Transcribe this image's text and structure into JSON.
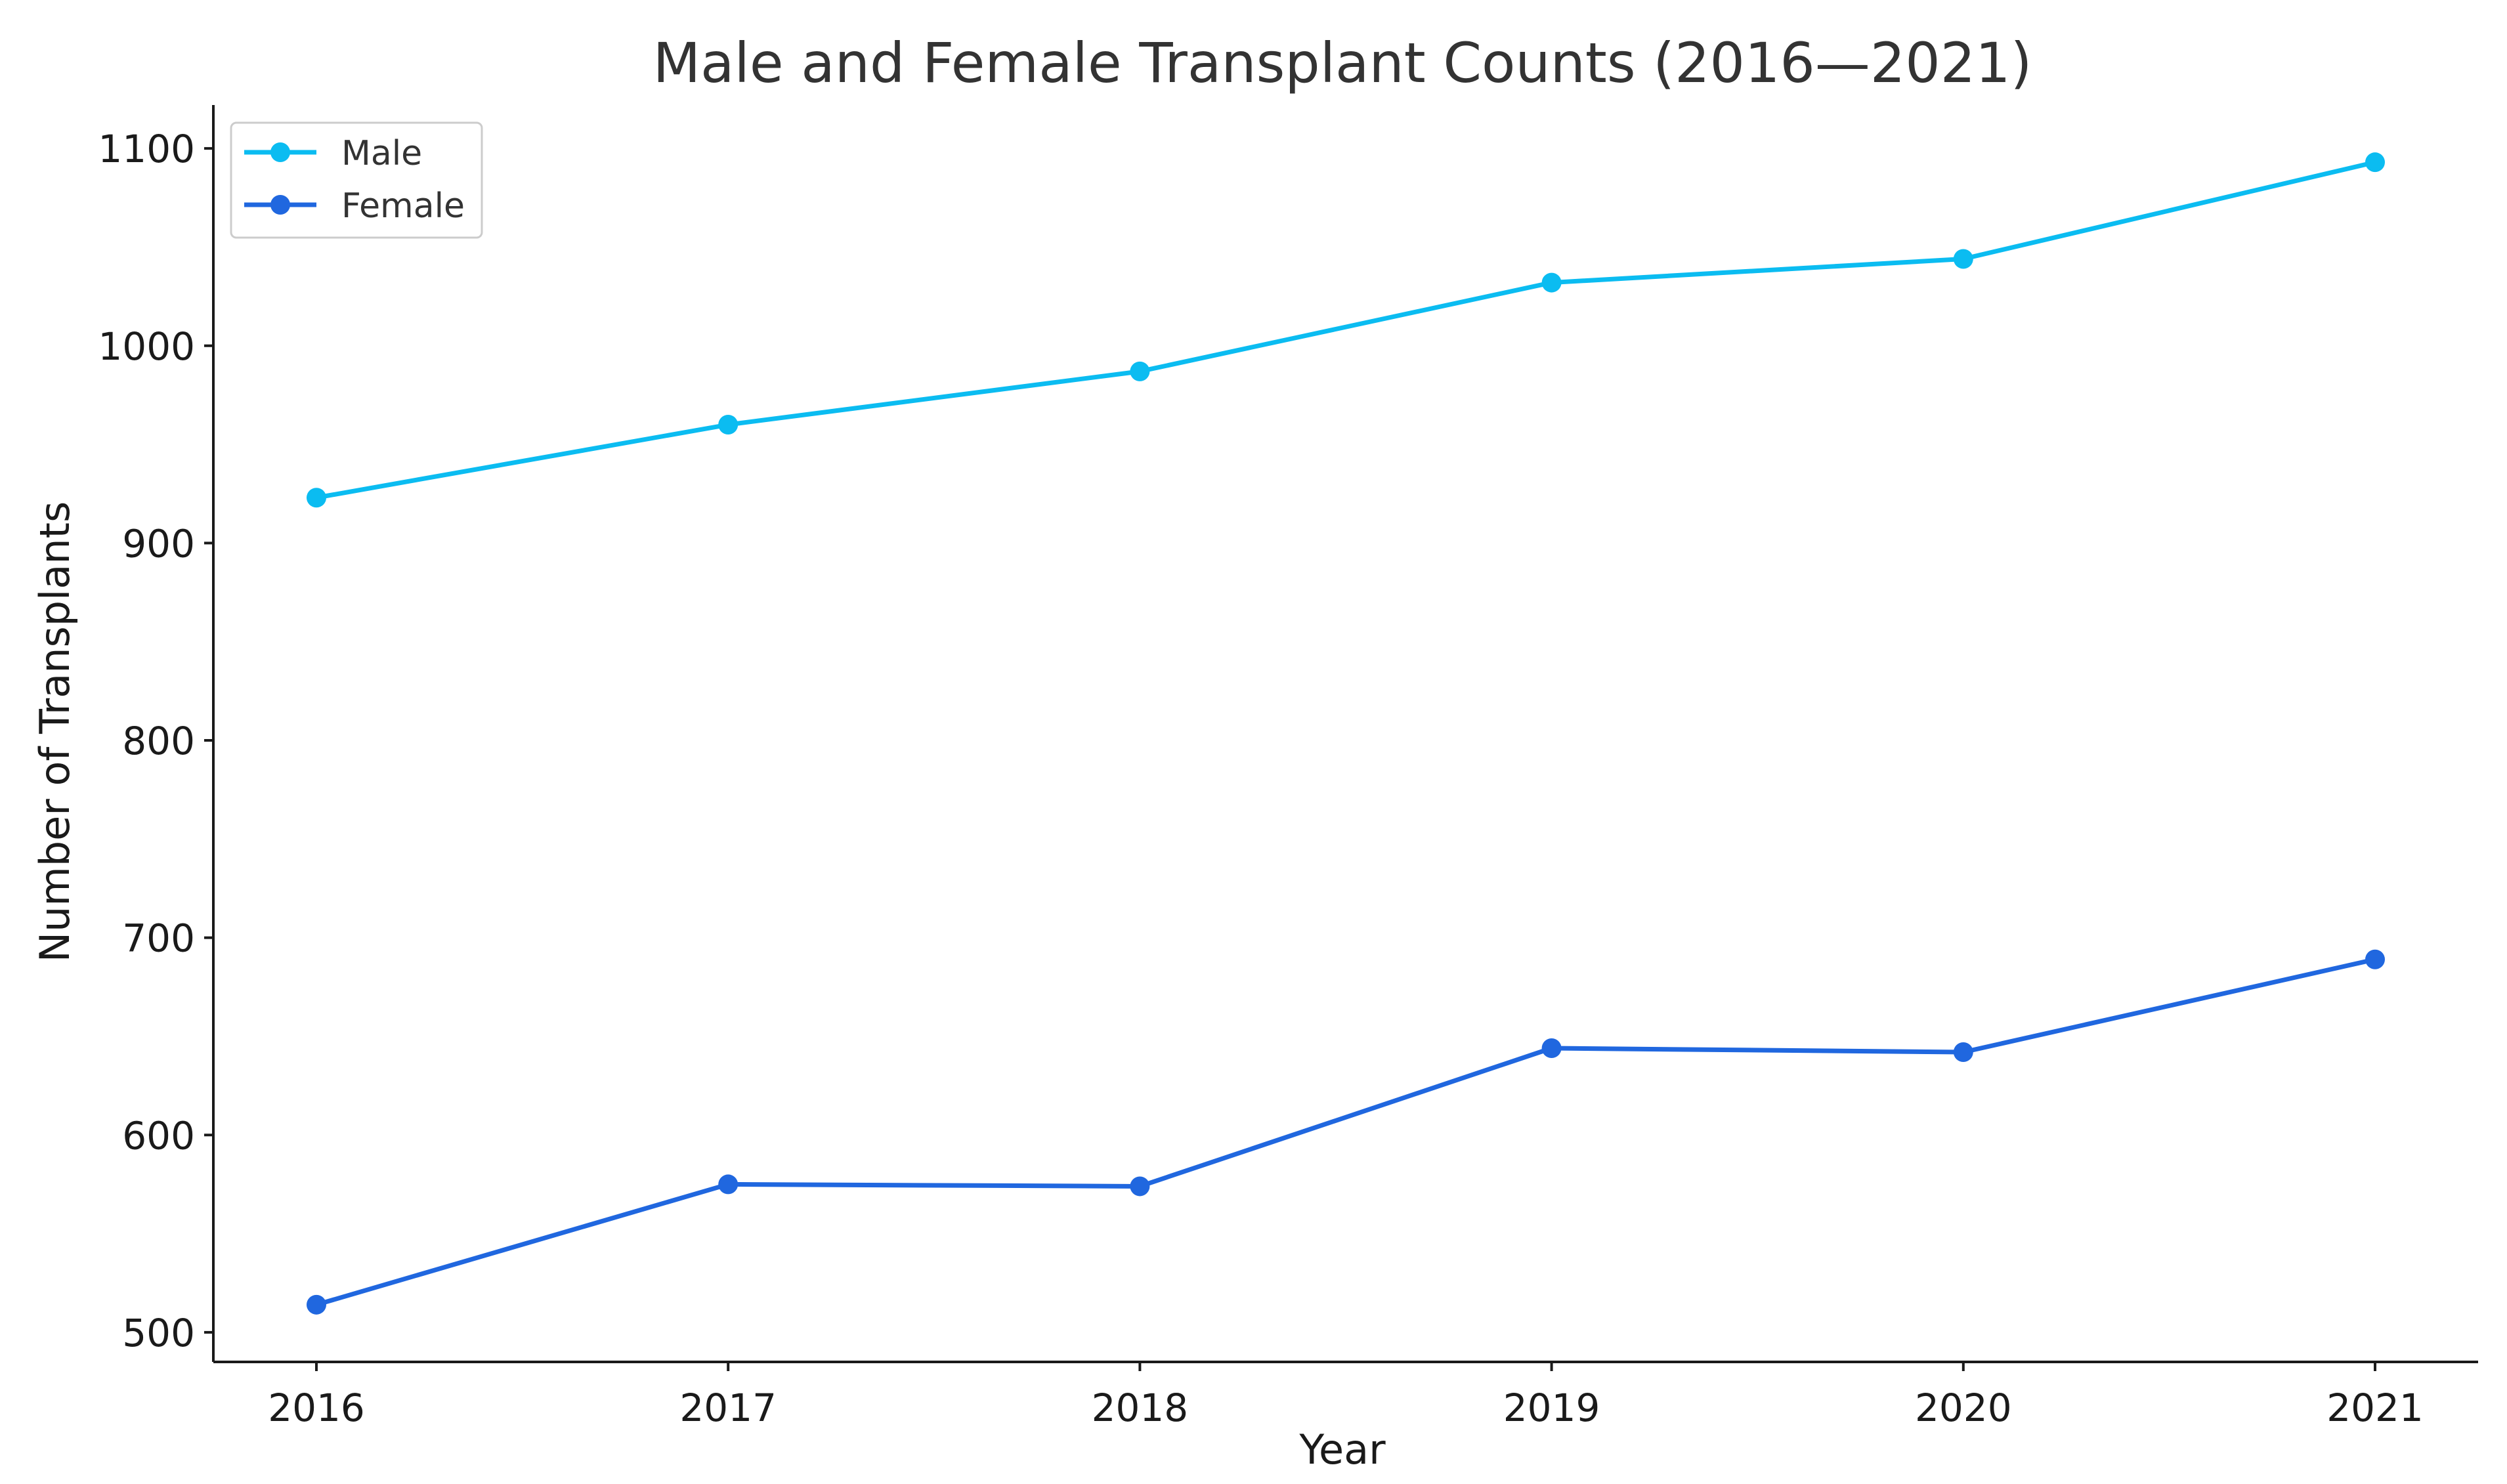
{
  "chart_data": {
    "type": "line",
    "title": "Male and Female Transplant Counts (2016—2021)",
    "xlabel": "Year",
    "ylabel": "Number of Transplants",
    "x": [
      2016,
      2017,
      2018,
      2019,
      2020,
      2021
    ],
    "x_tick_labels": [
      "2016",
      "2017",
      "2018",
      "2019",
      "2020",
      "2021"
    ],
    "ylim": [
      485,
      1122
    ],
    "y_ticks": [
      500,
      600,
      700,
      800,
      900,
      1000,
      1100
    ],
    "y_tick_labels": [
      "500",
      "600",
      "700",
      "800",
      "900",
      "1000",
      "1100"
    ],
    "grid": false,
    "legend_position": "top-left",
    "series": [
      {
        "name": "Male",
        "color": "#0BBCF1",
        "values": [
          923,
          960,
          987,
          1032,
          1044,
          1093
        ]
      },
      {
        "name": "Female",
        "color": "#2067DF",
        "values": [
          514,
          575,
          574,
          644,
          642,
          689
        ]
      }
    ]
  }
}
